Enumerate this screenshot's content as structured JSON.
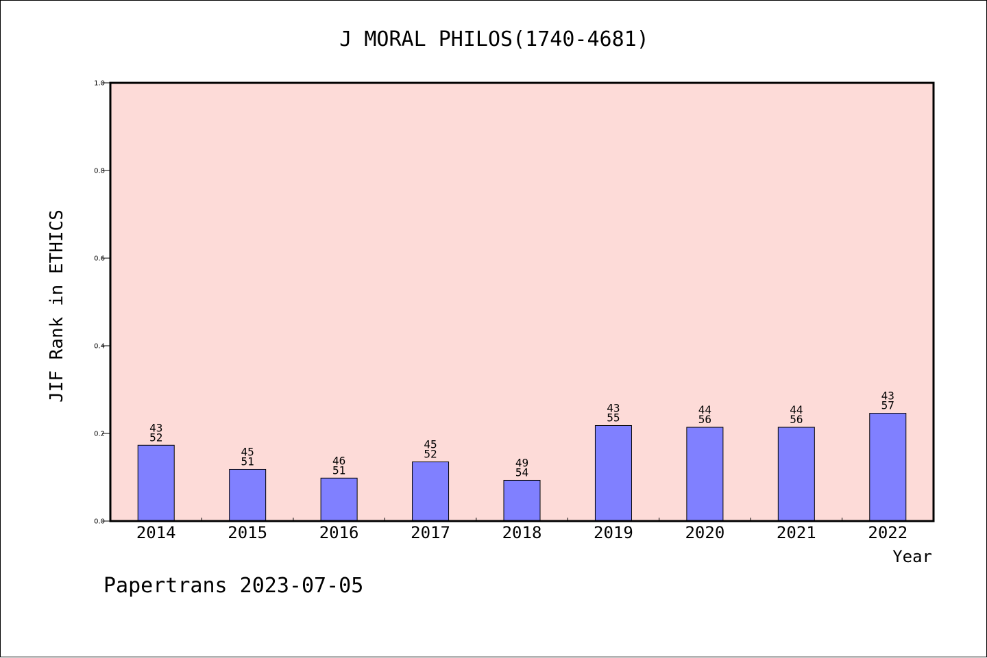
{
  "chart_data": {
    "type": "bar",
    "title": "J MORAL PHILOS(1740-4681)",
    "xlabel": "Year",
    "ylabel": "JIF Rank in ETHICS",
    "categories": [
      "2014",
      "2015",
      "2016",
      "2017",
      "2018",
      "2019",
      "2020",
      "2021",
      "2022"
    ],
    "values": [
      0.173,
      0.118,
      0.098,
      0.135,
      0.093,
      0.218,
      0.214,
      0.214,
      0.246
    ],
    "ranks": [
      "43",
      "45",
      "46",
      "45",
      "49",
      "43",
      "44",
      "44",
      "43"
    ],
    "totals": [
      "52",
      "51",
      "51",
      "52",
      "54",
      "55",
      "56",
      "56",
      "57"
    ],
    "ylim": [
      0,
      1.0
    ],
    "yticks": [
      "0.0",
      "0.2",
      "0.4",
      "0.6",
      "0.8",
      "1.0"
    ],
    "grid": false,
    "colors": {
      "plot_background": "#fddbd8",
      "bar": "#8080ff"
    }
  },
  "footer": {
    "text": "Papertrans 2023-07-05"
  }
}
